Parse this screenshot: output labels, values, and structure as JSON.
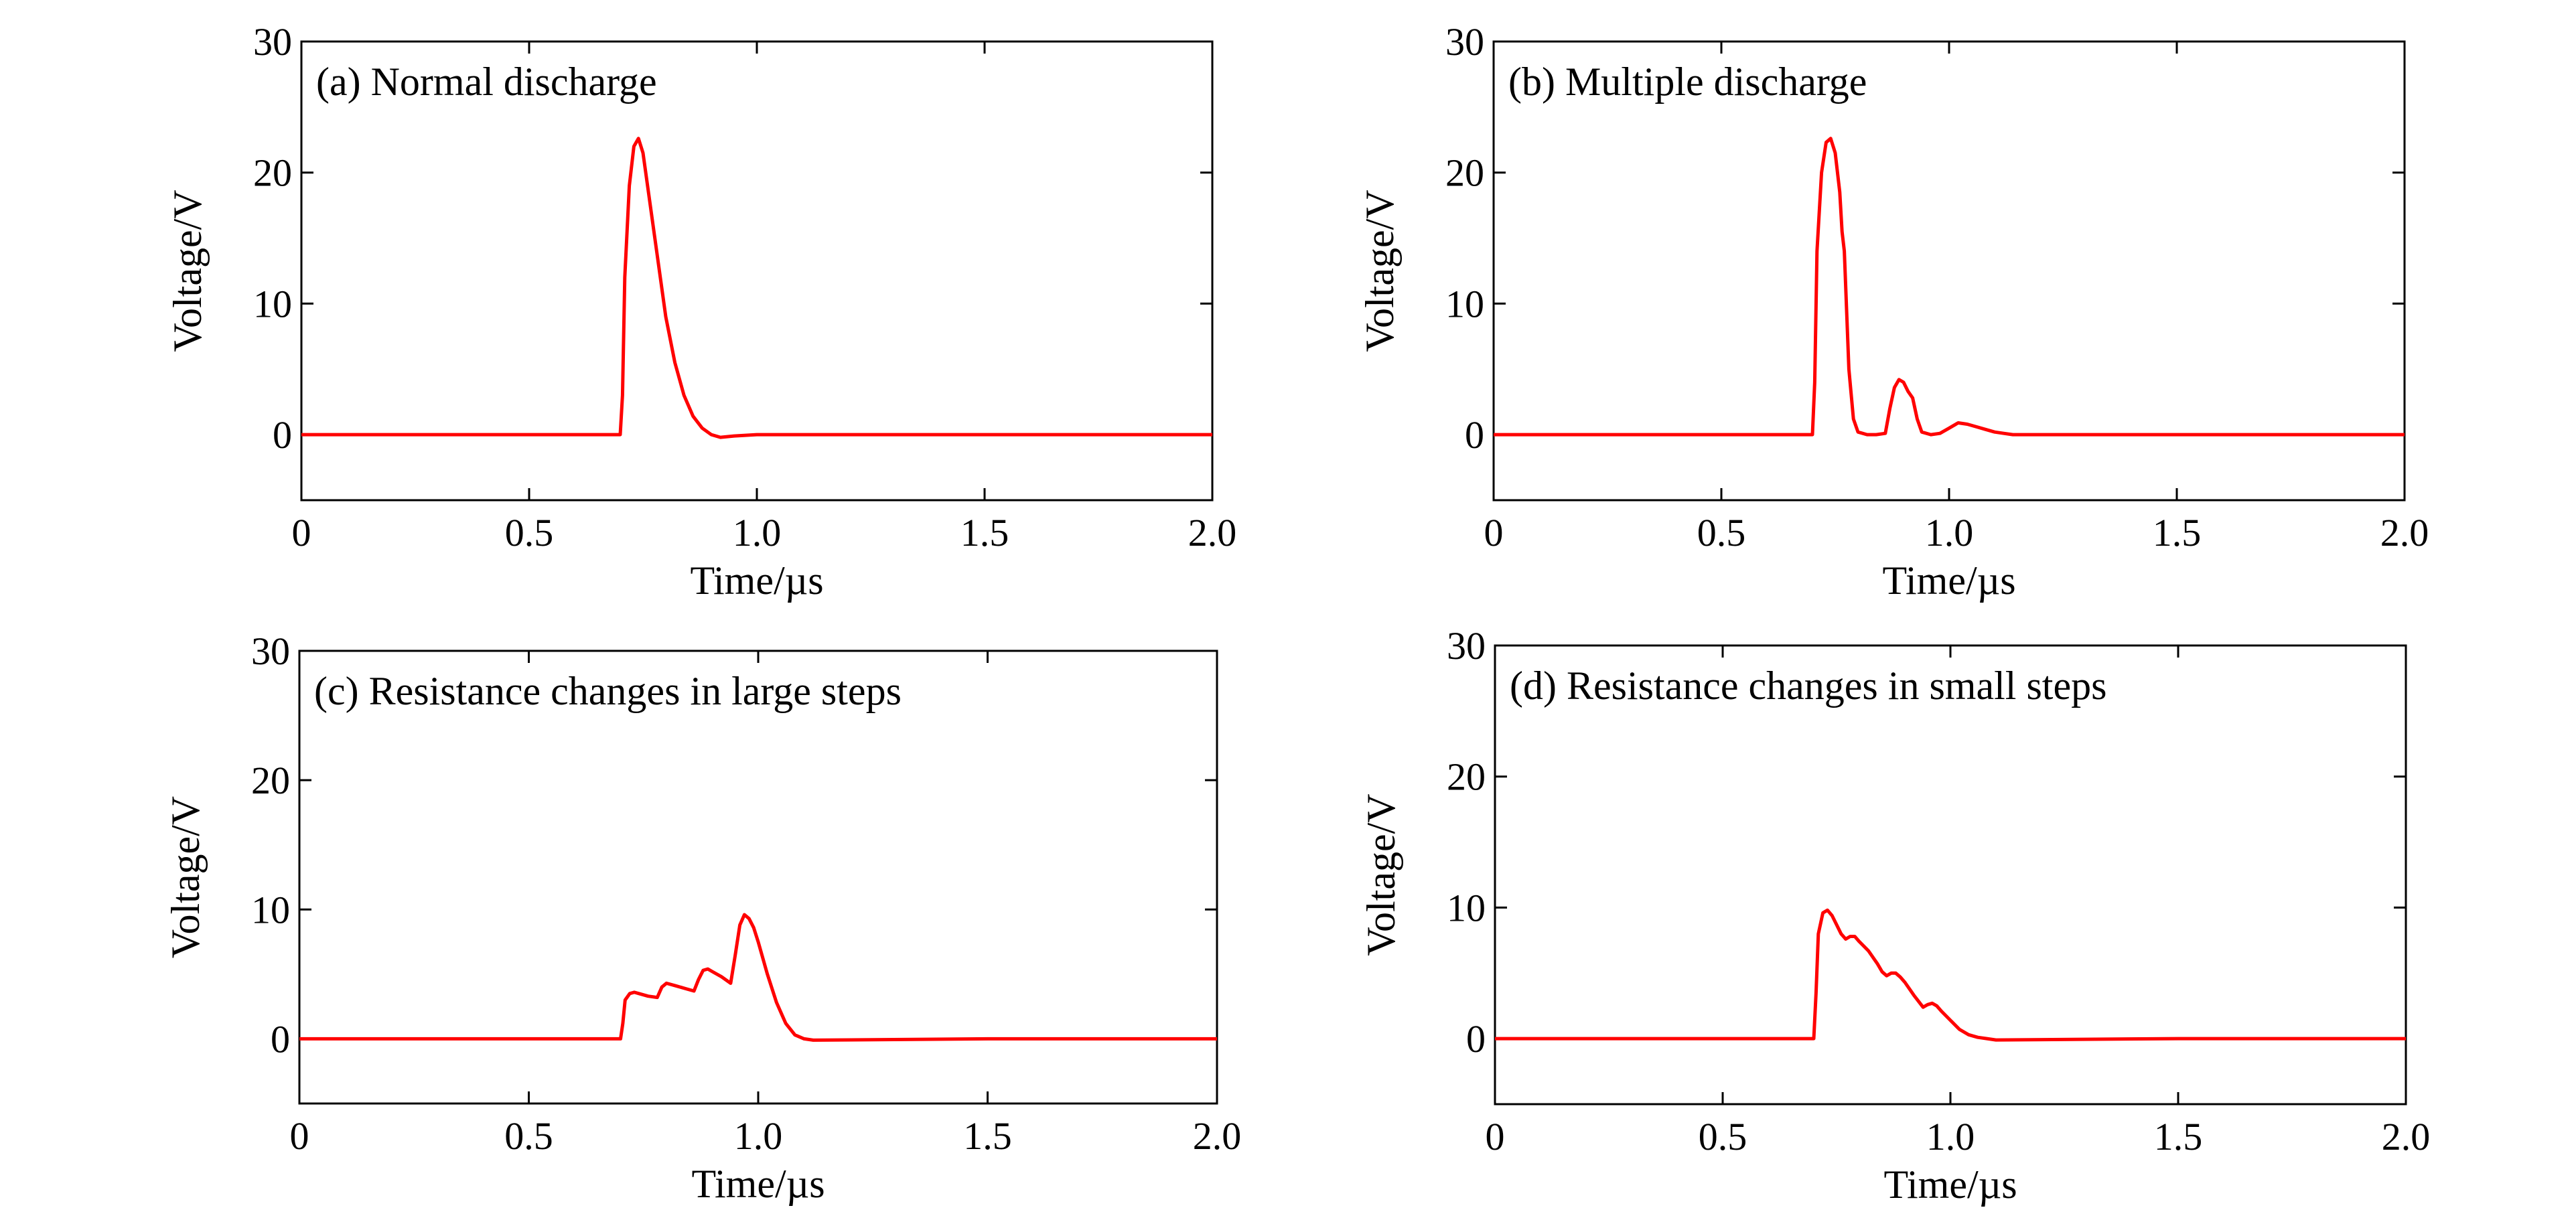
{
  "figure": {
    "line_color": "#ff0000"
  },
  "chart_data": [
    {
      "type": "line",
      "title": "(a) Normal discharge",
      "xlabel": "Time/µs",
      "ylabel": "Voltage/V",
      "xlim": [
        0,
        2.0
      ],
      "ylim": [
        -5,
        30
      ],
      "xticks": [
        0,
        0.5,
        1.0,
        1.5,
        2.0
      ],
      "xtick_labels": [
        "0",
        "0.5",
        "1.0",
        "1.5",
        "2.0"
      ],
      "yticks": [
        0,
        10,
        20,
        30
      ],
      "ytick_labels": [
        "0",
        "10",
        "20",
        "30"
      ],
      "grid": false,
      "series": [
        {
          "x": [
            0,
            0.7,
            0.705,
            0.71,
            0.72,
            0.73,
            0.74,
            0.75,
            0.76,
            0.78,
            0.8,
            0.82,
            0.84,
            0.86,
            0.88,
            0.9,
            0.92,
            0.95,
            1.0,
            1.5,
            2.0
          ],
          "y": [
            0,
            0,
            3,
            12,
            19,
            22,
            22.6,
            21.5,
            19,
            14,
            9,
            5.5,
            3,
            1.4,
            0.5,
            0.0,
            -0.2,
            -0.1,
            0,
            0,
            0
          ]
        }
      ]
    },
    {
      "type": "line",
      "title": "(b) Multiple discharge",
      "xlabel": "Time/µs",
      "ylabel": "Voltage/V",
      "xlim": [
        0,
        2.0
      ],
      "ylim": [
        -5,
        30
      ],
      "xticks": [
        0,
        0.5,
        1.0,
        1.5,
        2.0
      ],
      "xtick_labels": [
        "0",
        "0.5",
        "1.0",
        "1.5",
        "2.0"
      ],
      "yticks": [
        0,
        10,
        20,
        30
      ],
      "ytick_labels": [
        "0",
        "10",
        "20",
        "30"
      ],
      "grid": false,
      "series": [
        {
          "x": [
            0,
            0.7,
            0.705,
            0.71,
            0.72,
            0.73,
            0.74,
            0.75,
            0.76,
            0.765,
            0.77,
            0.78,
            0.79,
            0.8,
            0.82,
            0.84,
            0.86,
            0.87,
            0.88,
            0.89,
            0.9,
            0.91,
            0.92,
            0.93,
            0.94,
            0.96,
            0.98,
            1.0,
            1.02,
            1.04,
            1.06,
            1.08,
            1.1,
            1.12,
            1.14,
            1.5,
            2.0
          ],
          "y": [
            0,
            0,
            4,
            14,
            20,
            22.3,
            22.6,
            21.5,
            18.5,
            15.5,
            14,
            5,
            1.2,
            0.2,
            0,
            0,
            0.1,
            2.0,
            3.6,
            4.2,
            4.0,
            3.3,
            2.8,
            1.2,
            0.2,
            0,
            0.1,
            0.5,
            0.9,
            0.8,
            0.6,
            0.4,
            0.2,
            0.1,
            0,
            0,
            0
          ]
        }
      ]
    },
    {
      "type": "line",
      "title": "(c) Resistance changes in large steps",
      "xlabel": "Time/µs",
      "ylabel": "Voltage/V",
      "xlim": [
        0,
        2.0
      ],
      "ylim": [
        -5,
        30
      ],
      "xticks": [
        0,
        0.5,
        1.0,
        1.5,
        2.0
      ],
      "xtick_labels": [
        "0",
        "0.5",
        "1.0",
        "1.5",
        "2.0"
      ],
      "yticks": [
        0,
        10,
        20,
        30
      ],
      "ytick_labels": [
        "0",
        "10",
        "20",
        "30"
      ],
      "grid": false,
      "series": [
        {
          "x": [
            0,
            0.7,
            0.705,
            0.71,
            0.72,
            0.73,
            0.74,
            0.76,
            0.78,
            0.79,
            0.8,
            0.82,
            0.84,
            0.86,
            0.87,
            0.88,
            0.89,
            0.9,
            0.92,
            0.94,
            0.95,
            0.96,
            0.97,
            0.98,
            0.99,
            1.0,
            1.02,
            1.04,
            1.06,
            1.08,
            1.1,
            1.12,
            1.5,
            2.0
          ],
          "y": [
            0,
            0,
            1.2,
            3.0,
            3.5,
            3.6,
            3.5,
            3.3,
            3.2,
            4.0,
            4.3,
            4.1,
            3.9,
            3.7,
            4.6,
            5.3,
            5.4,
            5.2,
            4.8,
            4.3,
            6.5,
            8.8,
            9.6,
            9.3,
            8.6,
            7.5,
            5.0,
            2.8,
            1.2,
            0.3,
            0,
            -0.1,
            0,
            0
          ]
        }
      ]
    },
    {
      "type": "line",
      "title": "(d) Resistance changes in small steps",
      "xlabel": "Time/µs",
      "ylabel": "Voltage/V",
      "xlim": [
        0,
        2.0
      ],
      "ylim": [
        -5,
        30
      ],
      "xticks": [
        0,
        0.5,
        1.0,
        1.5,
        2.0
      ],
      "xtick_labels": [
        "0",
        "0.5",
        "1.0",
        "1.5",
        "2.0"
      ],
      "yticks": [
        0,
        10,
        20,
        30
      ],
      "ytick_labels": [
        "0",
        "10",
        "20",
        "30"
      ],
      "grid": false,
      "series": [
        {
          "x": [
            0,
            0.7,
            0.705,
            0.71,
            0.72,
            0.73,
            0.74,
            0.75,
            0.76,
            0.77,
            0.78,
            0.79,
            0.8,
            0.82,
            0.84,
            0.85,
            0.86,
            0.87,
            0.88,
            0.89,
            0.9,
            0.92,
            0.94,
            0.95,
            0.96,
            0.97,
            0.98,
            1.0,
            1.02,
            1.04,
            1.06,
            1.08,
            1.1,
            1.5,
            2.0
          ],
          "y": [
            0,
            0,
            3.5,
            8.0,
            9.6,
            9.8,
            9.4,
            8.7,
            8.0,
            7.6,
            7.8,
            7.8,
            7.4,
            6.7,
            5.7,
            5.1,
            4.8,
            5.0,
            5.0,
            4.7,
            4.3,
            3.3,
            2.4,
            2.6,
            2.7,
            2.5,
            2.1,
            1.4,
            0.7,
            0.3,
            0.1,
            0,
            -0.1,
            0,
            0
          ]
        }
      ]
    }
  ]
}
